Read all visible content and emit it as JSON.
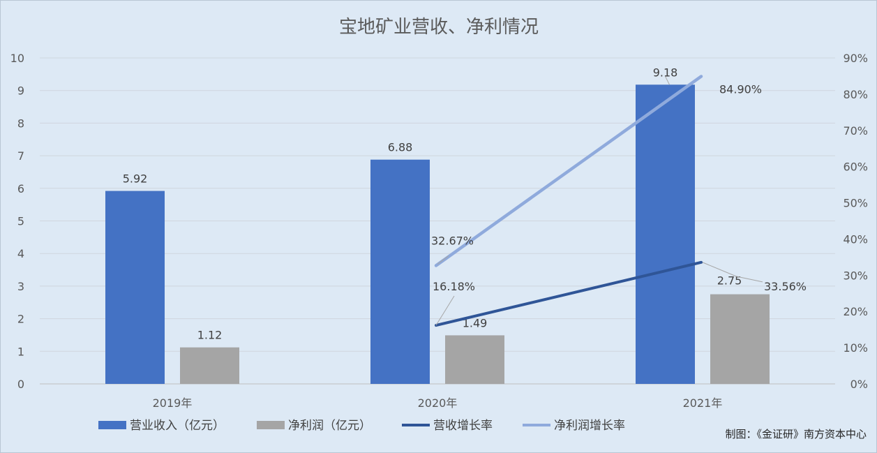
{
  "chart_data": {
    "type": "bar",
    "title": "宝地矿业营收、净利情况",
    "categories": [
      "2019年",
      "2020年",
      "2021年"
    ],
    "ylim_left": [
      0,
      10
    ],
    "yticks_left": [
      "0",
      "1",
      "2",
      "3",
      "4",
      "5",
      "6",
      "7",
      "8",
      "9",
      "10"
    ],
    "ylim_right": [
      0,
      90
    ],
    "yticks_right": [
      "0%",
      "10%",
      "20%",
      "30%",
      "40%",
      "50%",
      "60%",
      "70%",
      "80%",
      "90%"
    ],
    "grid": true,
    "legend_position": "bottom",
    "bar_series": [
      {
        "name": "营业收入（亿元）",
        "color": "#4472c4",
        "values": [
          5.92,
          6.88,
          9.18
        ],
        "labels": [
          "5.92",
          "6.88",
          "9.18"
        ]
      },
      {
        "name": "净利润（亿元）",
        "color": "#a5a5a5",
        "values": [
          1.12,
          1.49,
          2.75
        ],
        "labels": [
          "1.12",
          "1.49",
          "2.75"
        ]
      }
    ],
    "line_series": [
      {
        "name": "营收增长率",
        "color": "#2f5597",
        "points": [
          {
            "x": "2020年",
            "y": 16.18
          },
          {
            "x": "2021年",
            "y": 33.56
          }
        ],
        "labels": [
          "16.18%",
          "33.56%"
        ]
      },
      {
        "name": "净利润增长率",
        "color": "#8faadc",
        "points": [
          {
            "x": "2020年",
            "y": 32.67
          },
          {
            "x": "2021年",
            "y": 84.9
          }
        ],
        "labels": [
          "32.67%",
          "84.90%"
        ]
      }
    ]
  },
  "credit": "制图：《金证研》南方资本中心"
}
